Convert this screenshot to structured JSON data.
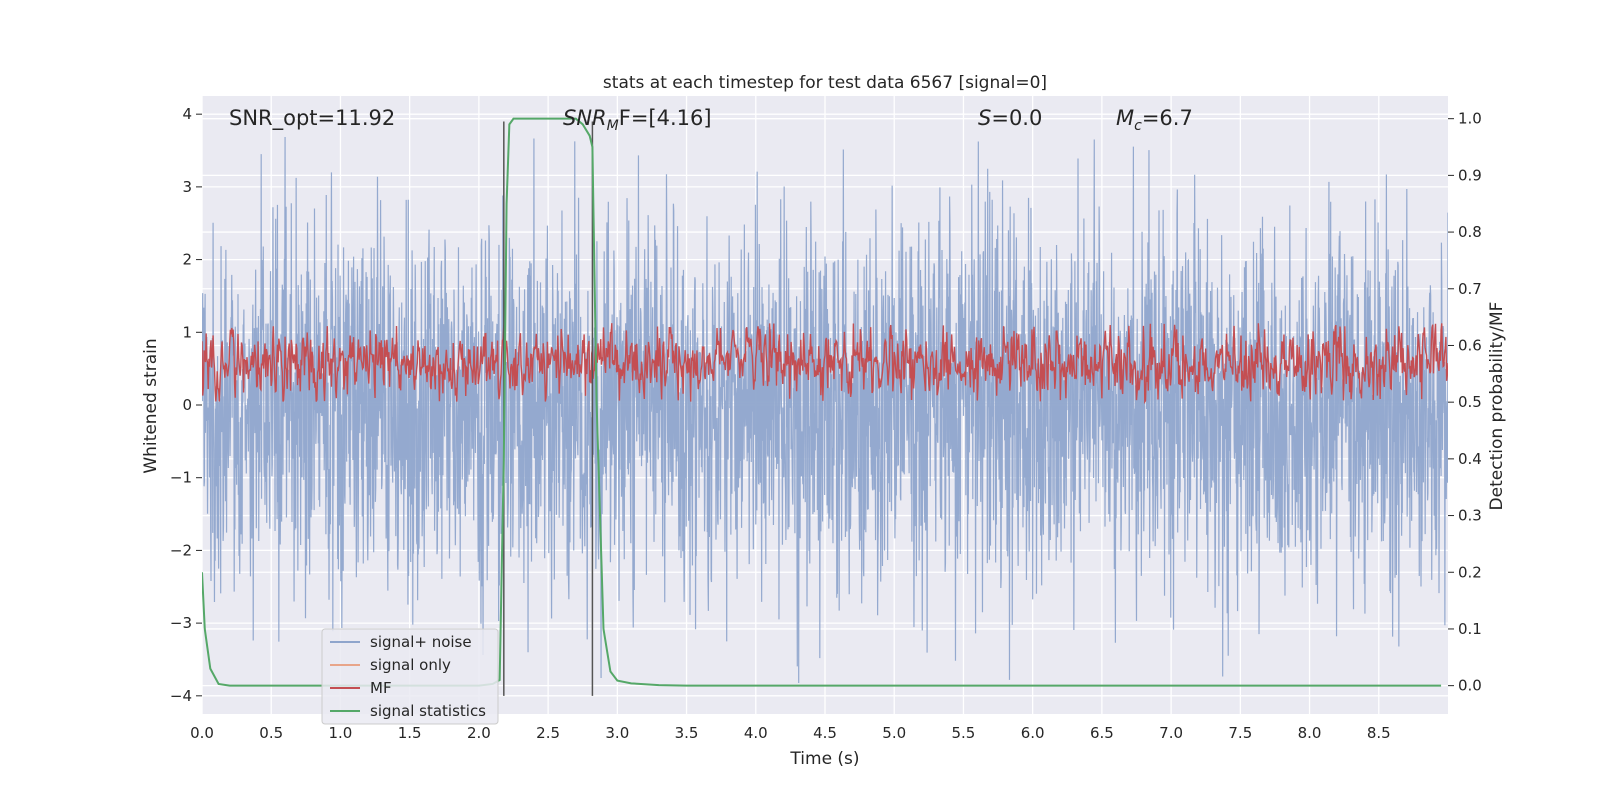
{
  "chart_data": {
    "type": "line",
    "title": "stats at each timestep for test data 6567 [signal=0]",
    "xlabel": "Time (s)",
    "ylabel": "Whitened strain",
    "ylabel_right": "Detection probability/MF",
    "xlim": [
      0,
      9.0
    ],
    "ylim": [
      -4.25,
      4.25
    ],
    "ylim_right": [
      -0.05,
      1.04
    ],
    "x_ticks": [
      "0.0",
      "0.5",
      "1.0",
      "1.5",
      "2.0",
      "2.5",
      "3.0",
      "3.5",
      "4.0",
      "4.5",
      "5.0",
      "5.5",
      "6.0",
      "6.5",
      "7.0",
      "7.5",
      "8.0",
      "8.5"
    ],
    "y_ticks": [
      "−4",
      "−3",
      "−2",
      "−1",
      "0",
      "1",
      "2",
      "3",
      "4"
    ],
    "y_ticks_right": [
      "0.0",
      "0.1",
      "0.2",
      "0.3",
      "0.4",
      "0.5",
      "0.6",
      "0.7",
      "0.8",
      "0.9",
      "1.0"
    ],
    "grid": true,
    "legend_placement": "lower-left",
    "annotations": {
      "snr_opt": "SNR_opt=11.92",
      "snr_mf_sym": "SNR",
      "snr_mf_sub": "M",
      "snr_mf_rest": "F=[4.16]",
      "s_sym": "S",
      "s_rest": "=0.0",
      "mc_sym": "M",
      "mc_sub": "c",
      "mc_rest": "=6.7"
    },
    "vlines_x": [
      2.18,
      2.82
    ],
    "series": [
      {
        "name": "signal+ noise",
        "color": "#8fa5cc",
        "style": "noise",
        "amplitude_range": [
          -4,
          3.7
        ]
      },
      {
        "name": "signal only",
        "color": "#e8a58a",
        "style": "flat",
        "values_note": "0"
      },
      {
        "name": "MF",
        "color": "#c44e52",
        "style": "mf",
        "right_axis_range": [
          0.5,
          0.64
        ]
      },
      {
        "name": "signal statistics",
        "color": "#55a868",
        "axis": "right",
        "x": [
          0.0,
          0.02,
          0.06,
          0.12,
          0.2,
          0.3,
          0.5,
          1.0,
          1.5,
          2.0,
          2.1,
          2.15,
          2.18,
          2.2,
          2.22,
          2.25,
          2.3,
          2.5,
          2.7,
          2.75,
          2.8,
          2.82,
          2.85,
          2.9,
          2.95,
          3.0,
          3.1,
          3.3,
          3.5,
          4.0,
          5.0,
          6.0,
          7.0,
          8.0,
          8.95
        ],
        "values": [
          0.2,
          0.1,
          0.03,
          0.003,
          0.0,
          0.0,
          0.0,
          0.0,
          0.0,
          0.0,
          0.003,
          0.01,
          0.4,
          0.85,
          0.99,
          1.0,
          1.0,
          1.0,
          1.0,
          0.99,
          0.97,
          0.95,
          0.5,
          0.1,
          0.025,
          0.009,
          0.004,
          0.001,
          0.0,
          0.0,
          0.0,
          0.0,
          0.0,
          0.0,
          0.0
        ]
      }
    ]
  }
}
